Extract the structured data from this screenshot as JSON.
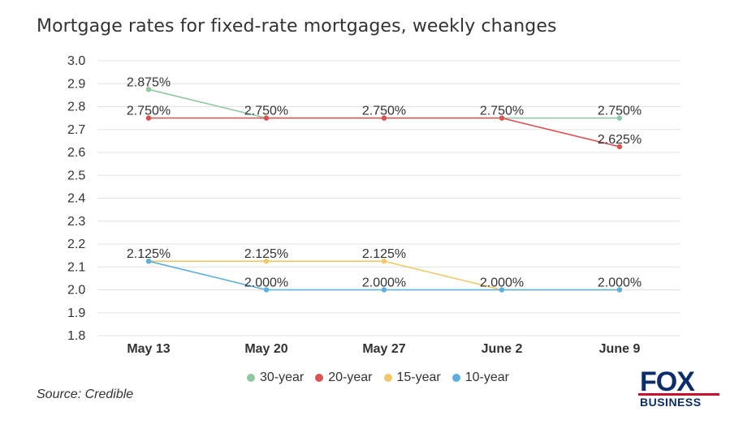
{
  "chart_data": {
    "type": "line",
    "title": "Mortgage rates for fixed-rate mortgages, weekly changes",
    "categories": [
      "May 13",
      "May 20",
      "May 27",
      "June 2",
      "June 9"
    ],
    "ylim": [
      1.8,
      3.0
    ],
    "yticks": [
      "1.8",
      "1.9",
      "2.0",
      "2.1",
      "2.2",
      "2.3",
      "2.4",
      "2.5",
      "2.6",
      "2.7",
      "2.8",
      "2.9",
      "3.0"
    ],
    "grid": true,
    "legend_position": "bottom",
    "series": [
      {
        "name": "30-year",
        "color": "#8cc9a1",
        "values": [
          2.875,
          2.75,
          2.75,
          2.75,
          2.75
        ],
        "labels": [
          "2.875%",
          "",
          "",
          "",
          "2.750%"
        ]
      },
      {
        "name": "20-year",
        "color": "#d9534f",
        "values": [
          2.75,
          2.75,
          2.75,
          2.75,
          2.625
        ],
        "labels": [
          "2.750%",
          "2.750%",
          "2.750%",
          "2.750%",
          "2.625%"
        ]
      },
      {
        "name": "15-year",
        "color": "#f0c96a",
        "values": [
          2.125,
          2.125,
          2.125,
          2.0,
          2.0
        ],
        "labels": [
          "2.125%",
          "2.125%",
          "2.125%",
          "",
          ""
        ]
      },
      {
        "name": "10-year",
        "color": "#5aaee0",
        "values": [
          2.125,
          2.0,
          2.0,
          2.0,
          2.0
        ],
        "labels": [
          "",
          "2.000%",
          "2.000%",
          "2.000%",
          "2.000%"
        ]
      }
    ]
  },
  "source": "Source: Credible",
  "logo": {
    "top": "FOX",
    "bottom": "BUSINESS"
  }
}
